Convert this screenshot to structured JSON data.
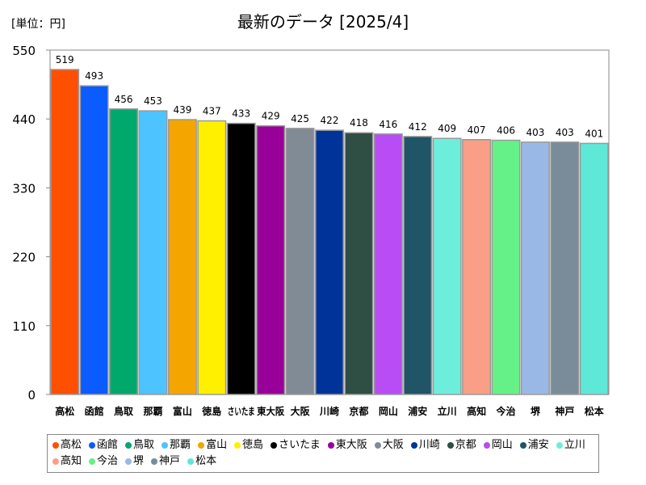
{
  "chart_data": {
    "type": "bar",
    "title": "最新のデータ [2025/4]",
    "unit_label": "[単位：円]",
    "ylim": [
      0,
      550
    ],
    "yticks": [
      0,
      110,
      220,
      330,
      440,
      550
    ],
    "grid": false,
    "legend_position": "bottom",
    "categories": [
      "高松",
      "函館",
      "鳥取",
      "那覇",
      "富山",
      "徳島",
      "さいたま",
      "東大阪",
      "大阪",
      "川崎",
      "京都",
      "岡山",
      "浦安",
      "立川",
      "高知",
      "今治",
      "堺",
      "神戸",
      "松本"
    ],
    "tick_labels": [
      "高松",
      "函館",
      "鳥取",
      "那覇",
      "富山",
      "徳島",
      "さいたま",
      "東大阪",
      "大阪",
      "川崎",
      "京都",
      "岡山",
      "浦安",
      "立川",
      "高知",
      "今治",
      "堺",
      "神戸",
      "松本"
    ],
    "values": [
      519,
      493,
      456,
      453,
      439,
      437,
      433,
      429,
      425,
      422,
      418,
      416,
      412,
      409,
      407,
      406,
      403,
      403,
      401
    ],
    "colors": [
      "#ff4f00",
      "#0a5cff",
      "#00a86b",
      "#4dc3ff",
      "#f5a500",
      "#fff000",
      "#000000",
      "#990099",
      "#808b96",
      "#003399",
      "#2f4f44",
      "#b84cf5",
      "#1f5566",
      "#6deedb",
      "#f99f87",
      "#66f088",
      "#9ab8e6",
      "#7a8c99",
      "#5ee8d8"
    ]
  },
  "legend": {
    "items": [
      "高松",
      "函館",
      "鳥取",
      "那覇",
      "富山",
      "徳島",
      "さいたま",
      "東大阪",
      "大阪",
      "川崎",
      "京都",
      "岡山",
      "浦安",
      "立川",
      "高知",
      "今治",
      "堺",
      "神戸",
      "松本"
    ]
  }
}
